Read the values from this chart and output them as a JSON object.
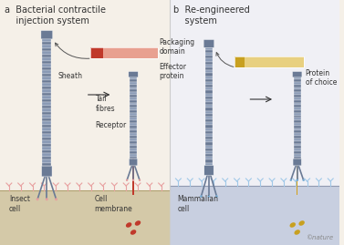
{
  "bg_color": "#f5f0e8",
  "bg_color_b": "#f0f0f5",
  "cell_color_a": "#d4c9a8",
  "cell_color_b": "#c8cfe0",
  "panel_a_title": "a  Bacterial contractile\n    injection system",
  "panel_b_title": "b  Re-engineered\n    system",
  "sheath_color": "#8a9ab5",
  "sheath_dark": "#6a7a95",
  "inner_rod_a": "#c0392b",
  "inner_rod_b": "#d4a017",
  "packaging_color_a_dark": "#c0392b",
  "packaging_color_a_light": "#e8a090",
  "packaging_color_b_dark": "#c8a020",
  "packaging_color_b_light": "#e8d080",
  "receptor_color_a": "#e8a0a0",
  "receptor_color_b": "#a0c8e8",
  "label_packaging_a": "Packaging\ndomain",
  "label_effector_a": "Effector\nprotein",
  "label_sheath_a": "Sheath",
  "label_tail_a": "Tail\nfibres",
  "label_receptor_a": "Receptor",
  "label_insect": "Insect\ncell",
  "label_membrane": "Cell\nmembrane",
  "label_protein_b": "Protein\nof choice",
  "label_mammalian": "Mammalian\ncell",
  "copyright": "©nature",
  "text_color": "#333333",
  "arrow_color": "#333333"
}
